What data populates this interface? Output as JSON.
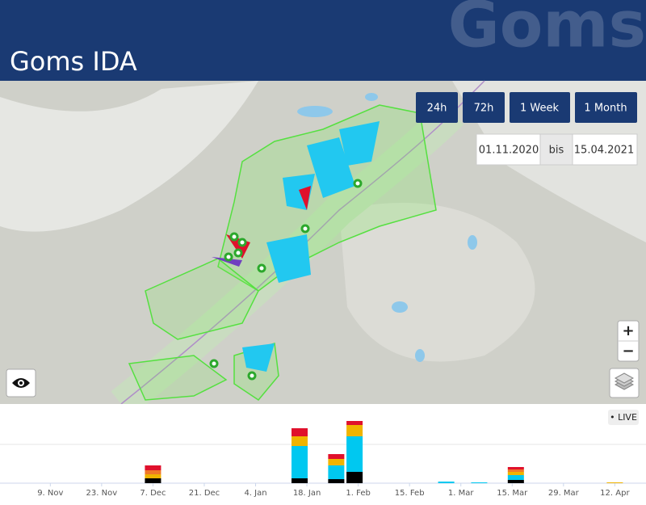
{
  "header": {
    "title": "Goms IDA",
    "watermark": "Goms"
  },
  "controls": {
    "range_buttons": [
      "24h",
      "72h",
      "1 Week",
      "1 Month"
    ],
    "date_from": "01.11.2020",
    "date_separator": "bis",
    "date_to": "15.04.2021",
    "zoom_in": "+",
    "zoom_out": "−",
    "live": "• LIVE"
  },
  "chart_data": {
    "type": "bar",
    "stacked": true,
    "x": [
      "7. Dec",
      "16. Jan",
      "26. Jan",
      "31. Jan",
      "25. Feb",
      "6. Mar",
      "16. Mar",
      "12. Apr"
    ],
    "series": [
      {
        "color": "#000000",
        "values": [
          6,
          6,
          5,
          14,
          0,
          0,
          4,
          0
        ]
      },
      {
        "color": "#00c8f0",
        "values": [
          0,
          40,
          17,
          44,
          2,
          1,
          6,
          0
        ]
      },
      {
        "color": "#f0b400",
        "values": [
          5,
          12,
          8,
          14,
          0,
          0,
          4,
          1
        ]
      },
      {
        "color": "#f07828",
        "values": [
          5,
          0,
          0,
          0,
          0,
          0,
          3,
          0
        ]
      },
      {
        "color": "#e0102c",
        "values": [
          6,
          10,
          6,
          5,
          0,
          0,
          3,
          0
        ]
      }
    ],
    "xlim": [
      "1. Nov",
      "15. Apr"
    ],
    "xticks": [
      "9. Nov",
      "23. Nov",
      "7. Dec",
      "21. Dec",
      "4. Jan",
      "18. Jan",
      "1. Feb",
      "15. Feb",
      "1. Mar",
      "15. Mar",
      "29. Mar",
      "12. Apr"
    ],
    "ylim": [
      0,
      80
    ]
  }
}
